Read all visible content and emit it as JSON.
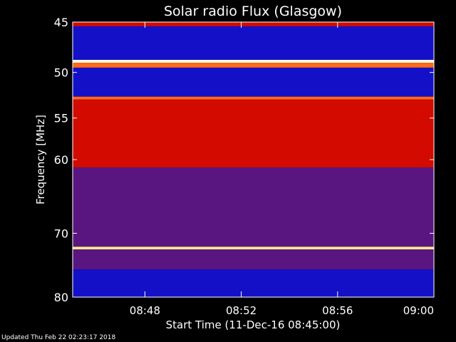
{
  "chart_data": {
    "type": "heatmap",
    "title": "Solar radio Flux (Glasgow)",
    "xlabel": "Start Time (11-Dec-16 08:45:00)",
    "ylabel": "Frequency [MHz]",
    "x_ticks": [
      "08:48",
      "08:52",
      "08:56",
      "09:00"
    ],
    "y_ticks": [
      "45",
      "50",
      "55",
      "60",
      "70",
      "80"
    ],
    "xlim": [
      "08:45",
      "09:00"
    ],
    "ylim": [
      45,
      80
    ],
    "y_scale": "log",
    "bands": [
      {
        "from": 45,
        "to": 45.4,
        "level": "red"
      },
      {
        "from": 45.4,
        "to": 48.7,
        "level": "blue"
      },
      {
        "from": 48.7,
        "to": 49.0,
        "level": "white"
      },
      {
        "from": 49.0,
        "to": 49.5,
        "level": "orange"
      },
      {
        "from": 49.5,
        "to": 52.6,
        "level": "blue"
      },
      {
        "from": 52.6,
        "to": 52.9,
        "level": "orange"
      },
      {
        "from": 52.9,
        "to": 61.0,
        "level": "red"
      },
      {
        "from": 61.0,
        "to": 72.0,
        "level": "purple"
      },
      {
        "from": 72.0,
        "to": 72.4,
        "level": "yellow"
      },
      {
        "from": 72.4,
        "to": 75.5,
        "level": "purple"
      },
      {
        "from": 75.5,
        "to": 80.0,
        "level": "blue"
      }
    ],
    "colors": {
      "blue": "#1410c8",
      "purple": "#5a1680",
      "red": "#d20a00",
      "orange": "#ff6a1a",
      "yellow": "#ffe890",
      "white": "#fffbe6"
    }
  },
  "footer": "Updated Thu Feb 22 02:23:17 2018"
}
